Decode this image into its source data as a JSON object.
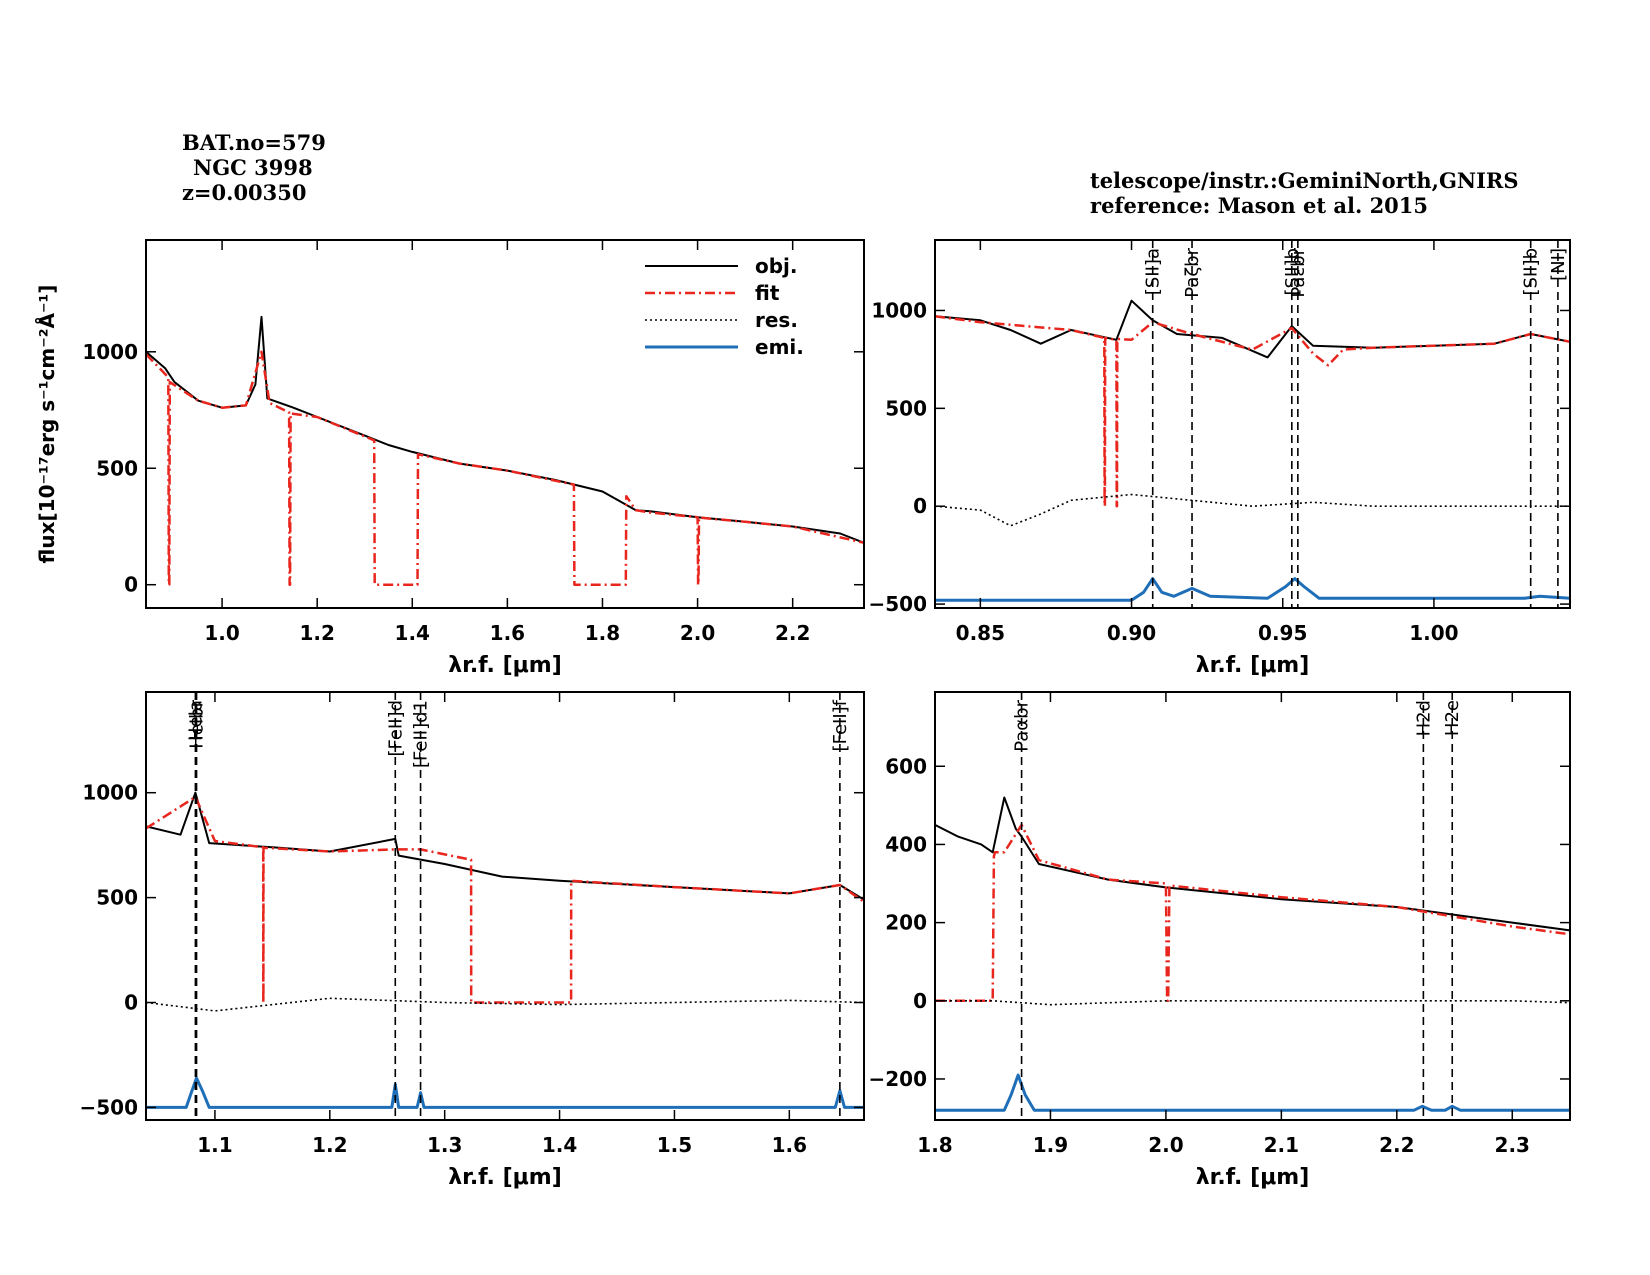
{
  "header": {
    "bat_no": "BAT.no=579",
    "galaxy": "NGC 3998",
    "redshift": "z=0.00350",
    "telescope": "telescope/instr.:GeminiNorth,GNIRS",
    "reference": "reference: Mason et al. 2015"
  },
  "colors": {
    "obj": "#000000",
    "fit": "#e8261e",
    "res": "#000000",
    "emi": "#1f6fb8"
  },
  "chart_data": [
    {
      "type": "line",
      "panel": "top-left",
      "xlabel": "λr.f. [μm]",
      "ylabel": "flux[10⁻¹⁷erg s⁻¹cm⁻²Å⁻¹]",
      "xlim": [
        0.84,
        2.35
      ],
      "ylim": [
        -100,
        1480
      ],
      "xticks": [
        1.0,
        1.2,
        1.4,
        1.6,
        1.8,
        2.0,
        2.2
      ],
      "xtick_labels": [
        "1.0",
        "1.2",
        "1.4",
        "1.6",
        "1.8",
        "2.0",
        "2.2"
      ],
      "yticks": [
        0,
        500,
        1000
      ],
      "ytick_labels": [
        "0",
        "500",
        "1000"
      ],
      "legend": {
        "placement": "top-right",
        "entries": [
          "obj.",
          "fit",
          "res.",
          "emi."
        ]
      },
      "series": [
        {
          "name": "obj.",
          "kind": "obj",
          "x": [
            0.84,
            0.88,
            0.9,
            0.95,
            1.0,
            1.05,
            1.07,
            1.083,
            1.095,
            1.15,
            1.2,
            1.3,
            1.35,
            1.4,
            1.5,
            1.6,
            1.7,
            1.8,
            1.87,
            1.9,
            2.0,
            2.1,
            2.2,
            2.3,
            2.35
          ],
          "y": [
            1000,
            930,
            870,
            790,
            760,
            770,
            860,
            1150,
            800,
            760,
            720,
            640,
            600,
            570,
            520,
            490,
            450,
            400,
            320,
            315,
            290,
            270,
            250,
            220,
            180
          ]
        },
        {
          "name": "fit",
          "kind": "fit",
          "x": [
            0.84,
            0.887,
            0.888,
            0.889,
            0.89,
            0.95,
            1.0,
            1.05,
            1.083,
            1.1,
            1.141,
            1.142,
            1.143,
            1.144,
            1.2,
            1.32,
            1.321,
            1.322,
            1.41,
            1.411,
            1.412,
            1.5,
            1.6,
            1.74,
            1.741,
            1.742,
            1.848,
            1.849,
            1.85,
            1.87,
            1.9,
            2.0,
            2.001,
            2.002,
            2.003,
            2.1,
            2.2,
            2.35
          ],
          "y": [
            990,
            890,
            0,
            0,
            870,
            790,
            760,
            770,
            1000,
            780,
            740,
            0,
            0,
            735,
            720,
            620,
            0,
            0,
            0,
            0,
            560,
            520,
            490,
            430,
            0,
            0,
            0,
            0,
            380,
            320,
            310,
            290,
            0,
            0,
            288,
            270,
            250,
            180
          ]
        },
        {
          "name": "emi.",
          "kind": "emi",
          "x": [],
          "y": []
        }
      ]
    },
    {
      "type": "line",
      "panel": "top-right",
      "xlabel": "λr.f. [μm]",
      "xlim": [
        0.835,
        1.045
      ],
      "ylim": [
        -520,
        1360
      ],
      "xticks": [
        0.85,
        0.9,
        0.95,
        1.0
      ],
      "xtick_labels": [
        "0.85",
        "0.90",
        "0.95",
        "1.00"
      ],
      "yticks": [
        -500,
        0,
        500,
        1000
      ],
      "ytick_labels": [
        "−500",
        "0",
        "500",
        "1000"
      ],
      "lines": [
        {
          "label": "[SII]a",
          "x": 0.907
        },
        {
          "label": "Paζbr",
          "x": 0.92
        },
        {
          "label": "[SII]b",
          "x": 0.953
        },
        {
          "label": "Paεbr",
          "x": 0.955
        },
        {
          "label": "[SII]b",
          "x": 1.032
        },
        {
          "label": "[NI]",
          "x": 1.041
        }
      ],
      "series": [
        {
          "name": "obj.",
          "kind": "obj",
          "x": [
            0.835,
            0.85,
            0.86,
            0.87,
            0.88,
            0.895,
            0.9,
            0.907,
            0.915,
            0.93,
            0.945,
            0.953,
            0.96,
            0.98,
            1.0,
            1.02,
            1.032,
            1.045
          ],
          "y": [
            970,
            950,
            900,
            830,
            900,
            850,
            1050,
            950,
            880,
            860,
            760,
            920,
            820,
            810,
            820,
            830,
            880,
            840
          ]
        },
        {
          "name": "fit",
          "kind": "fit",
          "x": [
            0.835,
            0.85,
            0.88,
            0.891,
            0.8911,
            0.8912,
            0.8913,
            0.895,
            0.8951,
            0.8952,
            0.8953,
            0.9,
            0.907,
            0.92,
            0.94,
            0.953,
            0.96,
            0.965,
            0.97,
            0.98,
            1.0,
            1.02,
            1.032,
            1.045
          ],
          "y": [
            970,
            940,
            900,
            860,
            0,
            0,
            860,
            850,
            0,
            0,
            855,
            850,
            940,
            880,
            800,
            910,
            780,
            720,
            800,
            810,
            820,
            830,
            880,
            840
          ]
        },
        {
          "name": "res.",
          "kind": "res",
          "x": [
            0.835,
            0.85,
            0.86,
            0.87,
            0.88,
            0.9,
            0.94,
            0.96,
            0.98,
            1.0,
            1.045
          ],
          "y": [
            0,
            -20,
            -100,
            -40,
            30,
            60,
            0,
            20,
            0,
            0,
            0
          ]
        },
        {
          "name": "emi.",
          "kind": "emi",
          "x": [
            0.835,
            0.9,
            0.904,
            0.907,
            0.91,
            0.914,
            0.92,
            0.926,
            0.945,
            0.951,
            0.954,
            0.957,
            0.962,
            1.03,
            1.035,
            1.045
          ],
          "y": [
            -480,
            -480,
            -440,
            -370,
            -440,
            -460,
            -420,
            -460,
            -470,
            -410,
            -370,
            -410,
            -470,
            -470,
            -460,
            -470
          ]
        }
      ]
    },
    {
      "type": "line",
      "panel": "bottom-left",
      "xlabel": "λr.f. [μm]",
      "xlim": [
        1.04,
        1.665
      ],
      "ylim": [
        -560,
        1480
      ],
      "xticks": [
        1.1,
        1.2,
        1.3,
        1.4,
        1.5,
        1.6
      ],
      "xtick_labels": [
        "1.1",
        "1.2",
        "1.3",
        "1.4",
        "1.5",
        "1.6"
      ],
      "yticks": [
        -500,
        0,
        500,
        1000
      ],
      "ytick_labels": [
        "−500",
        "0",
        "500",
        "1000"
      ],
      "lines": [
        {
          "label": "HeIa",
          "x": 1.083
        },
        {
          "label": "HeIbr",
          "x": 1.084
        },
        {
          "label": "[FeII]d",
          "x": 1.257
        },
        {
          "label": "[FeII]d1",
          "x": 1.279
        },
        {
          "label": "[FeII]f",
          "x": 1.644
        }
      ],
      "series": [
        {
          "name": "obj.",
          "kind": "obj",
          "x": [
            1.04,
            1.07,
            1.083,
            1.095,
            1.15,
            1.2,
            1.257,
            1.26,
            1.3,
            1.35,
            1.4,
            1.5,
            1.6,
            1.644,
            1.665
          ],
          "y": [
            840,
            800,
            1000,
            760,
            740,
            720,
            780,
            700,
            660,
            600,
            580,
            550,
            520,
            560,
            490
          ]
        },
        {
          "name": "fit",
          "kind": "fit",
          "x": [
            1.04,
            1.083,
            1.1,
            1.142,
            1.1421,
            1.1422,
            1.1423,
            1.2,
            1.257,
            1.279,
            1.323,
            1.3231,
            1.41,
            1.4101,
            1.5,
            1.6,
            1.644,
            1.665
          ],
          "y": [
            830,
            980,
            770,
            740,
            0,
            0,
            738,
            720,
            730,
            730,
            680,
            0,
            0,
            580,
            550,
            520,
            560,
            480
          ]
        },
        {
          "name": "res.",
          "kind": "res",
          "x": [
            1.04,
            1.1,
            1.2,
            1.3,
            1.4,
            1.5,
            1.6,
            1.665
          ],
          "y": [
            0,
            -40,
            20,
            0,
            -10,
            0,
            10,
            0
          ]
        },
        {
          "name": "emi.",
          "kind": "emi",
          "x": [
            1.04,
            1.075,
            1.08,
            1.084,
            1.089,
            1.095,
            1.254,
            1.257,
            1.26,
            1.276,
            1.279,
            1.282,
            1.64,
            1.644,
            1.648,
            1.665
          ],
          "y": [
            -500,
            -500,
            -420,
            -360,
            -420,
            -500,
            -500,
            -390,
            -500,
            -500,
            -430,
            -500,
            -500,
            -420,
            -500,
            -500
          ]
        }
      ]
    },
    {
      "type": "line",
      "panel": "bottom-right",
      "xlabel": "λr.f. [μm]",
      "xlim": [
        1.8,
        2.35
      ],
      "ylim": [
        -305,
        790
      ],
      "xticks": [
        1.8,
        1.9,
        2.0,
        2.1,
        2.2,
        2.3
      ],
      "xtick_labels": [
        "1.8",
        "1.9",
        "2.0",
        "2.1",
        "2.2",
        "2.3"
      ],
      "yticks": [
        -200,
        0,
        200,
        400,
        600
      ],
      "ytick_labels": [
        "−200",
        "0",
        "200",
        "400",
        "600"
      ],
      "lines": [
        {
          "label": "Paαbr",
          "x": 1.875
        },
        {
          "label": "H2d",
          "x": 2.223
        },
        {
          "label": "H2e",
          "x": 2.248
        }
      ],
      "series": [
        {
          "name": "obj.",
          "kind": "obj",
          "x": [
            1.8,
            1.82,
            1.84,
            1.85,
            1.86,
            1.87,
            1.875,
            1.89,
            1.92,
            1.95,
            2.0,
            2.1,
            2.2,
            2.3,
            2.35
          ],
          "y": [
            450,
            420,
            400,
            380,
            520,
            440,
            420,
            350,
            330,
            310,
            290,
            260,
            240,
            200,
            180
          ]
        },
        {
          "name": "fit",
          "kind": "fit",
          "x": [
            1.8,
            1.85,
            1.851,
            1.852,
            1.86,
            1.875,
            1.89,
            1.95,
            2.0,
            2.001,
            2.002,
            2.003,
            2.1,
            2.2,
            2.3,
            2.35
          ],
          "y": [
            0,
            0,
            370,
            380,
            380,
            450,
            360,
            310,
            300,
            0,
            0,
            295,
            265,
            240,
            190,
            170
          ]
        },
        {
          "name": "res.",
          "kind": "res",
          "x": [
            1.8,
            1.85,
            1.9,
            2.0,
            2.1,
            2.2,
            2.3,
            2.35
          ],
          "y": [
            0,
            0,
            -10,
            0,
            0,
            0,
            0,
            -5
          ]
        },
        {
          "name": "emi.",
          "kind": "emi",
          "x": [
            1.8,
            1.86,
            1.866,
            1.872,
            1.878,
            1.886,
            2.215,
            2.222,
            2.23,
            2.242,
            2.248,
            2.255,
            2.35
          ],
          "y": [
            -280,
            -280,
            -240,
            -190,
            -240,
            -280,
            -280,
            -270,
            -280,
            -280,
            -270,
            -280,
            -280
          ]
        }
      ]
    }
  ]
}
